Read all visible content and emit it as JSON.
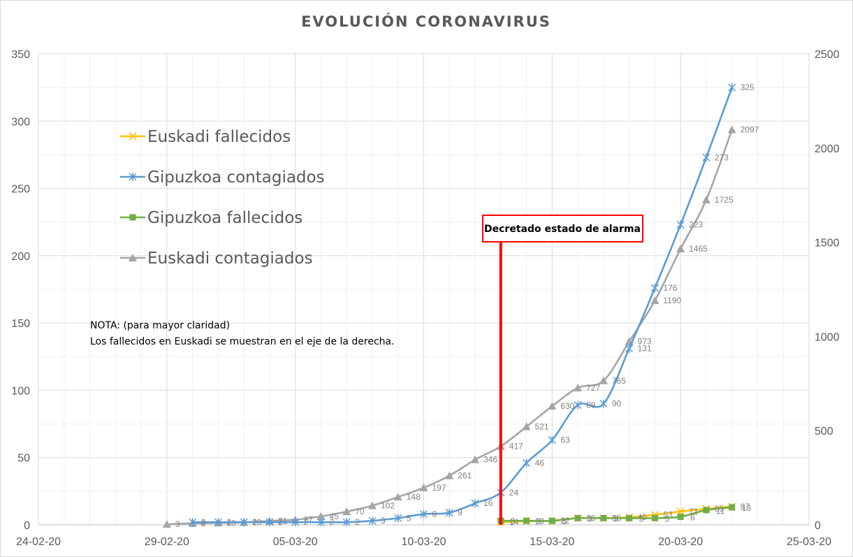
{
  "chart_data": {
    "type": "line",
    "title": "EVOLUCIÓN  CORONAVIRUS",
    "colors": {
      "Euskadi fallecidos": "#FFC000",
      "Gipuzkoa contagiados": "#5B9BD5",
      "Gipuzkoa fallecidos": "#70AD47",
      "Euskadi contagiados": "#A5A5A5",
      "alarm": "#FF0000"
    },
    "x_axis": {
      "type": "date",
      "range": [
        "2020-02-24",
        "2020-03-25"
      ],
      "tick_labels": [
        "24-02-20",
        "29-02-20",
        "05-03-20",
        "10-03-20",
        "15-03-20",
        "20-03-20",
        "25-03-20"
      ],
      "tick_dates": [
        "2020-02-24",
        "2020-02-29",
        "2020-03-05",
        "2020-03-10",
        "2020-03-15",
        "2020-03-20",
        "2020-03-25"
      ]
    },
    "y_axis_left": {
      "range": [
        0,
        350
      ],
      "ticks": [
        "0",
        "50",
        "100",
        "150",
        "200",
        "250",
        "300",
        "350"
      ]
    },
    "y_axis_right": {
      "range": [
        0,
        2500
      ],
      "ticks": [
        "0",
        "500",
        "1000",
        "1500",
        "2000",
        "2500"
      ]
    },
    "grid": true,
    "legend": {
      "placement": "top-left",
      "entries": [
        "Euskadi fallecidos",
        "Gipuzkoa contagiados",
        "Gipuzkoa fallecidos",
        "Euskadi contagiados"
      ]
    },
    "series": [
      {
        "name": "Euskadi fallecidos",
        "axis": "right",
        "marker": "x",
        "x": [
          "2020-03-13",
          "2020-03-14",
          "2020-03-15",
          "2020-03-16",
          "2020-03-17",
          "2020-03-18",
          "2020-03-19",
          "2020-03-20",
          "2020-03-21",
          "2020-03-22"
        ],
        "values": [
          14,
          19,
          22,
          36,
          36,
          40,
          53,
          71,
          85,
          97
        ]
      },
      {
        "name": "Gipuzkoa contagiados",
        "axis": "left",
        "marker": "star",
        "x": [
          "2020-03-01",
          "2020-03-02",
          "2020-03-03",
          "2020-03-04",
          "2020-03-05",
          "2020-03-06",
          "2020-03-07",
          "2020-03-08",
          "2020-03-09",
          "2020-03-10",
          "2020-03-11",
          "2020-03-12",
          "2020-03-13",
          "2020-03-14",
          "2020-03-15",
          "2020-03-16",
          "2020-03-17",
          "2020-03-18",
          "2020-03-19",
          "2020-03-20",
          "2020-03-21",
          "2020-03-22"
        ],
        "values": [
          2,
          2,
          2,
          2,
          2,
          2,
          2,
          3,
          5,
          8,
          9,
          16,
          24,
          46,
          63,
          89,
          90,
          131,
          176,
          223,
          273,
          325
        ],
        "labels": [
          "2",
          "2",
          "2",
          "2",
          "2",
          "2",
          "2",
          "3",
          "5",
          "8",
          "9",
          "16",
          "24",
          "46",
          "63",
          "89",
          "90",
          "131",
          "176",
          "223",
          "273",
          "325"
        ]
      },
      {
        "name": "Gipuzkoa fallecidos",
        "axis": "left",
        "marker": "square",
        "x": [
          "2020-03-13",
          "2020-03-14",
          "2020-03-15",
          "2020-03-16",
          "2020-03-17",
          "2020-03-18",
          "2020-03-19",
          "2020-03-20",
          "2020-03-21",
          "2020-03-22"
        ],
        "values": [
          3,
          3,
          3,
          5,
          5,
          5,
          5,
          6,
          11,
          13
        ]
      },
      {
        "name": "Euskadi contagiados",
        "axis": "right",
        "marker": "triangle",
        "x": [
          "2020-02-29",
          "2020-03-01",
          "2020-03-02",
          "2020-03-03",
          "2020-03-04",
          "2020-03-05",
          "2020-03-06",
          "2020-03-07",
          "2020-03-08",
          "2020-03-09",
          "2020-03-10",
          "2020-03-11",
          "2020-03-12",
          "2020-03-13",
          "2020-03-14",
          "2020-03-15",
          "2020-03-16",
          "2020-03-17",
          "2020-03-18",
          "2020-03-19",
          "2020-03-20",
          "2020-03-21",
          "2020-03-22"
        ],
        "values": [
          3,
          8,
          10,
          13,
          21,
          27,
          45,
          70,
          102,
          148,
          197,
          261,
          346,
          417,
          521,
          630,
          727,
          765,
          973,
          1190,
          1465,
          1725,
          2097
        ]
      }
    ],
    "annotations": {
      "alarm": {
        "text": "Decretado estado de alarma",
        "date": "2020-03-13"
      },
      "note": [
        "NOTA: (para mayor claridad)",
        "Los fallecidos en Euskadi se muestran en el eje de la derecha."
      ]
    }
  }
}
